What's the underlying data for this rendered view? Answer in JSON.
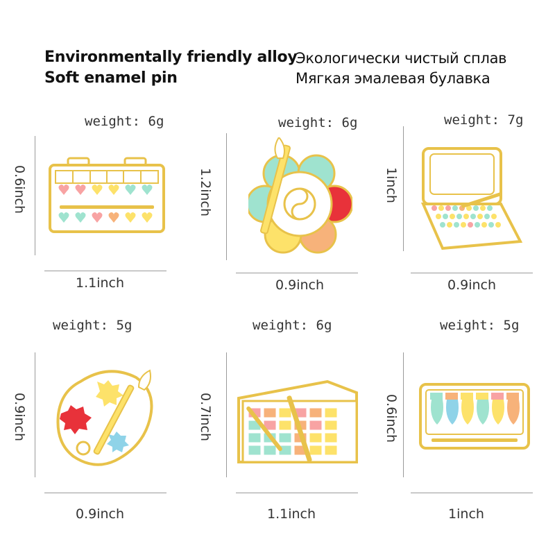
{
  "header": {
    "line1_en": "Environmentally friendly alloy",
    "line2_en": "Soft enamel pin",
    "line1_ru": "Экологически чистый сплав",
    "line2_ru": "Мягкая эмалевая булавка"
  },
  "pins": [
    {
      "weight": "weight: 6g",
      "height": "0.6inch",
      "width": "1.1inch",
      "icon": "watercolor-heart-palette-icon"
    },
    {
      "weight": "weight: 6g",
      "height": "1.2inch",
      "width": "0.9inch",
      "icon": "flower-palette-with-brush-icon"
    },
    {
      "weight": "weight: 7g",
      "height": "1inch",
      "width": "0.9inch",
      "icon": "open-paint-case-icon"
    },
    {
      "weight": "weight: 5g",
      "height": "0.9inch",
      "width": "0.9inch",
      "icon": "artist-palette-splash-icon"
    },
    {
      "weight": "weight: 6g",
      "height": "0.7inch",
      "width": "1.1inch",
      "icon": "paint-tray-with-brush-icon"
    },
    {
      "weight": "weight: 5g",
      "height": "0.6inch",
      "width": "1inch",
      "icon": "paint-tubes-box-icon"
    }
  ],
  "colors": {
    "gold": "#e8c24a",
    "enamel_white": "#ffffff",
    "mint": "#9fe3cf",
    "pink": "#f8a3a3",
    "yellow": "#fde26a",
    "red": "#e8323a",
    "orange": "#f7b27a",
    "blue": "#8fd3e8"
  }
}
